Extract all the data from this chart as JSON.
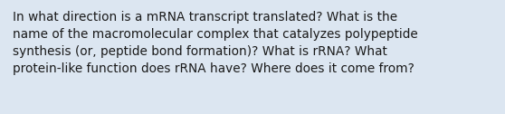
{
  "text": "In what direction is a mRNA transcript translated? What is the\nname of the macromolecular complex that catalyzes polypeptide\nsynthesis (or, peptide bond formation)? What is rRNA? What\nprotein-like function does rRNA have? Where does it come from?",
  "background_color": "#dce6f1",
  "text_color": "#1a1a1a",
  "font_size": 9.8,
  "fig_width": 5.58,
  "fig_height": 1.26,
  "dpi": 100
}
